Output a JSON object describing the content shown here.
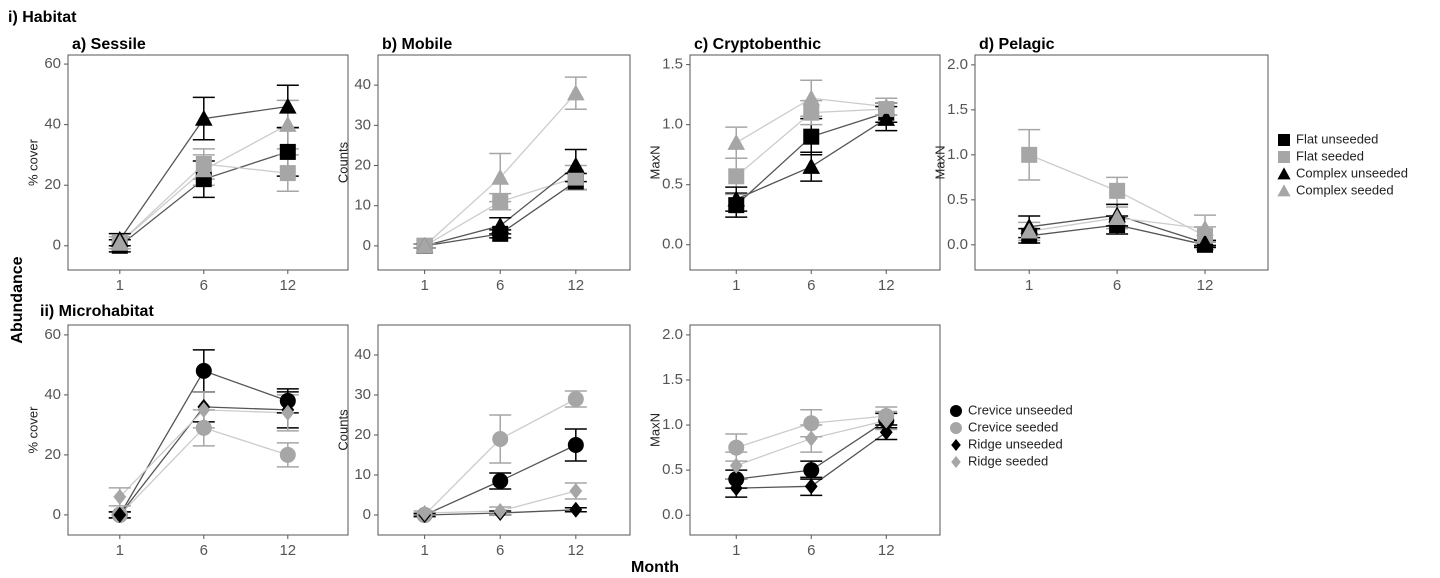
{
  "texts": {
    "section1": "i) Habitat",
    "section2": "ii) Microhabitat",
    "ylabel": "Abundance",
    "xlabel": "Month"
  },
  "chart_data": [
    {
      "type": "line",
      "title": "a) Sessile",
      "y_label": "% cover",
      "categories": [
        "1",
        "6",
        "12"
      ],
      "ylim": [
        -8,
        63
      ],
      "yticks": [
        0,
        20,
        40,
        60
      ],
      "series": [
        {
          "name": "Flat unseeded",
          "color": "#000000",
          "marker": "square",
          "values": [
            0,
            22,
            31
          ],
          "errors": [
            2,
            6,
            8
          ]
        },
        {
          "name": "Flat seeded",
          "color": "#a6a6a6",
          "marker": "square",
          "values": [
            1,
            27,
            24
          ],
          "errors": [
            2,
            5,
            6
          ]
        },
        {
          "name": "Complex unseeded",
          "color": "#000000",
          "marker": "triangle",
          "values": [
            2,
            42,
            46
          ],
          "errors": [
            2,
            7,
            7
          ]
        },
        {
          "name": "Complex seeded",
          "color": "#a6a6a6",
          "marker": "triangle",
          "values": [
            1,
            25,
            40
          ],
          "errors": [
            2,
            5,
            8
          ]
        }
      ]
    },
    {
      "type": "line",
      "title": "b) Mobile",
      "y_label": "Counts",
      "categories": [
        "1",
        "6",
        "12"
      ],
      "ylim": [
        -6,
        47.5
      ],
      "yticks": [
        0,
        10,
        20,
        30,
        40
      ],
      "series": [
        {
          "name": "Flat unseeded",
          "color": "#000000",
          "marker": "square",
          "values": [
            0,
            3,
            16
          ],
          "errors": [
            0.5,
            1,
            2
          ]
        },
        {
          "name": "Flat seeded",
          "color": "#a6a6a6",
          "marker": "square",
          "values": [
            0,
            11,
            17
          ],
          "errors": [
            0.5,
            2,
            3
          ]
        },
        {
          "name": "Complex unseeded",
          "color": "#000000",
          "marker": "triangle",
          "values": [
            0,
            5,
            20
          ],
          "errors": [
            0.5,
            2,
            4
          ]
        },
        {
          "name": "Complex seeded",
          "color": "#a6a6a6",
          "marker": "triangle",
          "values": [
            0,
            17,
            38
          ],
          "errors": [
            0.5,
            6,
            4
          ]
        }
      ]
    },
    {
      "type": "line",
      "title": "c) Cryptobenthic",
      "y_label": "MaxN",
      "categories": [
        "1",
        "6",
        "12"
      ],
      "ylim": [
        -0.21,
        1.58
      ],
      "yticks": [
        {
          "value": 0,
          "label": "0.0"
        },
        {
          "value": 0.5,
          "label": "0.5"
        },
        {
          "value": 1,
          "label": "1.0"
        },
        {
          "value": 1.5,
          "label": "1.5"
        }
      ],
      "series": [
        {
          "name": "Flat unseeded",
          "color": "#000000",
          "marker": "square",
          "values": [
            0.33,
            0.9,
            1.1
          ],
          "errors": [
            0.1,
            0.15,
            0.08
          ]
        },
        {
          "name": "Flat seeded",
          "color": "#a6a6a6",
          "marker": "square",
          "values": [
            0.57,
            1.1,
            1.13
          ],
          "errors": [
            0.15,
            0.1,
            0.05
          ]
        },
        {
          "name": "Complex unseeded",
          "color": "#000000",
          "marker": "triangle",
          "values": [
            0.38,
            0.65,
            1.05
          ],
          "errors": [
            0.1,
            0.12,
            0.1
          ]
        },
        {
          "name": "Complex seeded",
          "color": "#a6a6a6",
          "marker": "triangle",
          "values": [
            0.85,
            1.22,
            1.15
          ],
          "errors": [
            0.13,
            0.15,
            0.07
          ]
        }
      ]
    },
    {
      "type": "line",
      "title": "d) Pelagic",
      "y_label": "MaxN",
      "categories": [
        "1",
        "6",
        "12"
      ],
      "ylim": [
        -0.28,
        2.11
      ],
      "legend": true,
      "yticks": [
        {
          "value": 0,
          "label": "0.0"
        },
        {
          "value": 0.5,
          "label": "0.5"
        },
        {
          "value": 1,
          "label": "1.0"
        },
        {
          "value": 1.5,
          "label": "1.5"
        },
        {
          "value": 2,
          "label": "2.0"
        }
      ],
      "series": [
        {
          "name": "Flat unseeded",
          "color": "#000000",
          "marker": "square",
          "values": [
            0.1,
            0.22,
            0.0
          ],
          "errors": [
            0.08,
            0.1,
            0.03
          ]
        },
        {
          "name": "Flat seeded",
          "color": "#a6a6a6",
          "marker": "square",
          "values": [
            1.0,
            0.6,
            0.1
          ],
          "errors": [
            0.28,
            0.15,
            0.1
          ]
        },
        {
          "name": "Complex unseeded",
          "color": "#000000",
          "marker": "triangle",
          "values": [
            0.2,
            0.33,
            0.02
          ],
          "errors": [
            0.12,
            0.12,
            0.03
          ]
        },
        {
          "name": "Complex seeded",
          "color": "#a6a6a6",
          "marker": "triangle",
          "values": [
            0.15,
            0.3,
            0.18
          ],
          "errors": [
            0.1,
            0.12,
            0.15
          ]
        }
      ]
    },
    {
      "type": "line",
      "y_label": "% cover",
      "categories": [
        "1",
        "6",
        "12"
      ],
      "ylim": [
        -6.7,
        63.3
      ],
      "yticks": [
        0,
        20,
        40,
        60
      ],
      "series": [
        {
          "name": "Crevice unseeded",
          "color": "#000000",
          "marker": "circle",
          "values": [
            0,
            48,
            38
          ],
          "errors": [
            1,
            7,
            4
          ]
        },
        {
          "name": "Crevice seeded",
          "color": "#a6a6a6",
          "marker": "circle",
          "values": [
            0,
            29,
            20
          ],
          "errors": [
            1,
            6,
            4
          ]
        },
        {
          "name": "Ridge unseeded",
          "color": "#000000",
          "marker": "diamond",
          "values": [
            0,
            36,
            35
          ],
          "errors": [
            1,
            5,
            6
          ]
        },
        {
          "name": "Ridge seeded",
          "color": "#a6a6a6",
          "marker": "diamond",
          "values": [
            6,
            35,
            34
          ],
          "errors": [
            3,
            6,
            6
          ]
        }
      ]
    },
    {
      "type": "line",
      "y_label": "Counts",
      "categories": [
        "1",
        "6",
        "12"
      ],
      "ylim": [
        -5,
        47.5
      ],
      "yticks": [
        0,
        10,
        20,
        30,
        40
      ],
      "series": [
        {
          "name": "Crevice unseeded",
          "color": "#000000",
          "marker": "circle",
          "values": [
            0,
            8.5,
            17.5
          ],
          "errors": [
            0.5,
            2,
            4
          ]
        },
        {
          "name": "Crevice seeded",
          "color": "#a6a6a6",
          "marker": "circle",
          "values": [
            0,
            19,
            29
          ],
          "errors": [
            0.5,
            6,
            2
          ]
        },
        {
          "name": "Ridge unseeded",
          "color": "#000000",
          "marker": "diamond",
          "values": [
            0,
            0.5,
            1.3
          ],
          "errors": [
            0.3,
            0.5,
            0.5
          ]
        },
        {
          "name": "Ridge seeded",
          "color": "#a6a6a6",
          "marker": "diamond",
          "values": [
            0.5,
            1,
            6
          ],
          "errors": [
            0.5,
            1,
            2
          ]
        }
      ]
    },
    {
      "type": "line",
      "y_label": "MaxN",
      "categories": [
        "1",
        "6",
        "12"
      ],
      "ylim": [
        -0.22,
        2.11
      ],
      "legend": true,
      "yticks": [
        {
          "value": 0,
          "label": "0.0"
        },
        {
          "value": 0.5,
          "label": "0.5"
        },
        {
          "value": 1,
          "label": "1.0"
        },
        {
          "value": 1.5,
          "label": "1.5"
        },
        {
          "value": 2,
          "label": "2.0"
        }
      ],
      "series": [
        {
          "name": "Crevice unseeded",
          "color": "#000000",
          "marker": "circle",
          "values": [
            0.4,
            0.5,
            1.05
          ],
          "errors": [
            0.1,
            0.1,
            0.08
          ]
        },
        {
          "name": "Crevice seeded",
          "color": "#a6a6a6",
          "marker": "circle",
          "values": [
            0.75,
            1.02,
            1.1
          ],
          "errors": [
            0.15,
            0.15,
            0.1
          ]
        },
        {
          "name": "Ridge unseeded",
          "color": "#000000",
          "marker": "diamond",
          "values": [
            0.3,
            0.32,
            0.92
          ],
          "errors": [
            0.1,
            0.1,
            0.08
          ]
        },
        {
          "name": "Ridge seeded",
          "color": "#a6a6a6",
          "marker": "diamond",
          "values": [
            0.55,
            0.85,
            1.05
          ],
          "errors": [
            0.15,
            0.15,
            0.1
          ]
        }
      ]
    }
  ]
}
